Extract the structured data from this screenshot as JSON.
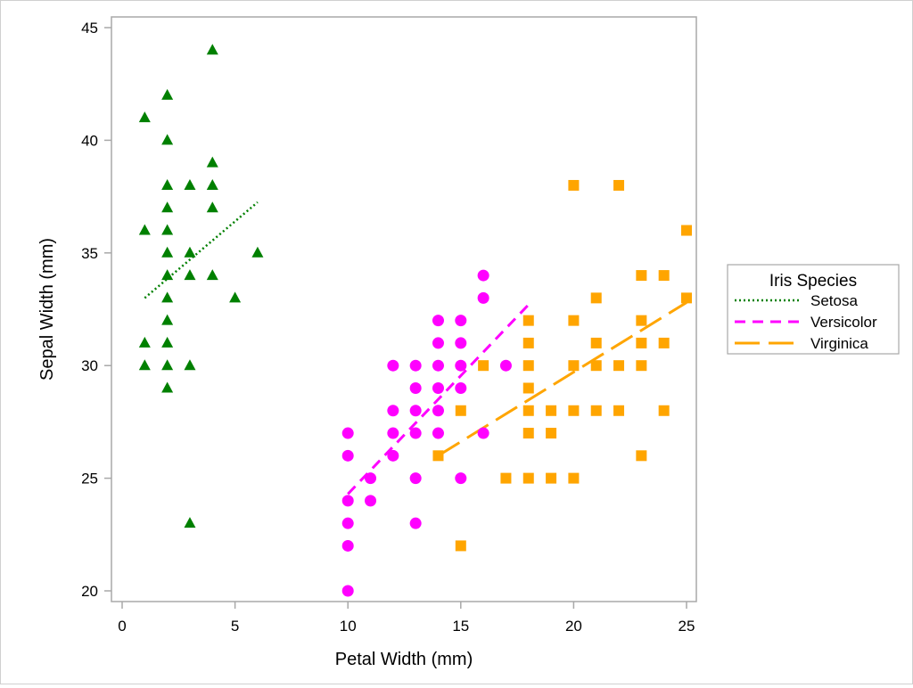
{
  "chart_data": {
    "type": "scatter",
    "title": "",
    "xlabel": "Petal Width (mm)",
    "ylabel": "Sepal Width (mm)",
    "xlim": [
      -1,
      25.4
    ],
    "ylim": [
      18.7,
      45.5
    ],
    "xticks": [
      0,
      5,
      10,
      15,
      20,
      25
    ],
    "yticks": [
      20,
      25,
      30,
      35,
      40,
      45
    ],
    "grid": false,
    "legend": {
      "title": "Iris Species",
      "placement": "right"
    },
    "series": [
      {
        "name": "Setosa",
        "color": "#008000",
        "marker": "triangle",
        "line_style": "dotted",
        "points": [
          [
            4,
            44
          ],
          [
            2,
            42
          ],
          [
            1,
            41
          ],
          [
            2,
            40
          ],
          [
            4,
            39
          ],
          [
            2,
            38
          ],
          [
            3,
            38
          ],
          [
            4,
            38
          ],
          [
            2,
            37
          ],
          [
            4,
            37
          ],
          [
            1,
            36
          ],
          [
            2,
            36
          ],
          [
            2,
            35
          ],
          [
            3,
            35
          ],
          [
            6,
            35
          ],
          [
            2,
            34
          ],
          [
            3,
            34
          ],
          [
            4,
            34
          ],
          [
            2,
            33
          ],
          [
            5,
            33
          ],
          [
            2,
            32
          ],
          [
            1,
            31
          ],
          [
            2,
            31
          ],
          [
            1,
            30
          ],
          [
            2,
            30
          ],
          [
            3,
            30
          ],
          [
            2,
            29
          ],
          [
            3,
            23
          ]
        ],
        "fit_line": [
          [
            1,
            33.0
          ],
          [
            6,
            37.25
          ]
        ]
      },
      {
        "name": "Versicolor",
        "color": "#ff00ff",
        "marker": "circle",
        "line_style": "dashed",
        "points": [
          [
            10,
            27
          ],
          [
            10,
            26
          ],
          [
            10,
            24
          ],
          [
            10,
            23
          ],
          [
            10,
            22
          ],
          [
            10,
            20
          ],
          [
            11,
            25
          ],
          [
            11,
            24
          ],
          [
            12,
            30
          ],
          [
            12,
            28
          ],
          [
            12,
            27
          ],
          [
            12,
            26
          ],
          [
            13,
            30
          ],
          [
            13,
            29
          ],
          [
            13,
            28
          ],
          [
            13,
            27
          ],
          [
            13,
            25
          ],
          [
            13,
            23
          ],
          [
            14,
            32
          ],
          [
            14,
            31
          ],
          [
            14,
            30
          ],
          [
            14,
            29
          ],
          [
            14,
            28
          ],
          [
            14,
            27
          ],
          [
            15,
            32
          ],
          [
            15,
            31
          ],
          [
            15,
            30
          ],
          [
            15,
            29
          ],
          [
            15,
            25
          ],
          [
            16,
            34
          ],
          [
            16,
            33
          ],
          [
            16,
            27
          ],
          [
            17,
            30
          ]
        ],
        "fit_line": [
          [
            10,
            24.3
          ],
          [
            18,
            32.7
          ]
        ]
      },
      {
        "name": "Virginica",
        "color": "#ffa500",
        "marker": "square",
        "line_style": "long-dash",
        "points": [
          [
            20,
            38
          ],
          [
            22,
            38
          ],
          [
            25,
            36
          ],
          [
            23,
            34
          ],
          [
            24,
            34
          ],
          [
            21,
            33
          ],
          [
            25,
            33
          ],
          [
            18,
            32
          ],
          [
            20,
            32
          ],
          [
            23,
            32
          ],
          [
            18,
            31
          ],
          [
            21,
            31
          ],
          [
            23,
            31
          ],
          [
            24,
            31
          ],
          [
            16,
            30
          ],
          [
            18,
            30
          ],
          [
            20,
            30
          ],
          [
            21,
            30
          ],
          [
            22,
            30
          ],
          [
            23,
            30
          ],
          [
            18,
            29
          ],
          [
            15,
            28
          ],
          [
            18,
            28
          ],
          [
            19,
            28
          ],
          [
            20,
            28
          ],
          [
            21,
            28
          ],
          [
            22,
            28
          ],
          [
            24,
            28
          ],
          [
            18,
            27
          ],
          [
            19,
            27
          ],
          [
            14,
            26
          ],
          [
            23,
            26
          ],
          [
            17,
            25
          ],
          [
            18,
            25
          ],
          [
            19,
            25
          ],
          [
            20,
            25
          ],
          [
            15,
            22
          ]
        ],
        "fit_line": [
          [
            14,
            26.0
          ],
          [
            25,
            32.8
          ]
        ]
      }
    ]
  }
}
